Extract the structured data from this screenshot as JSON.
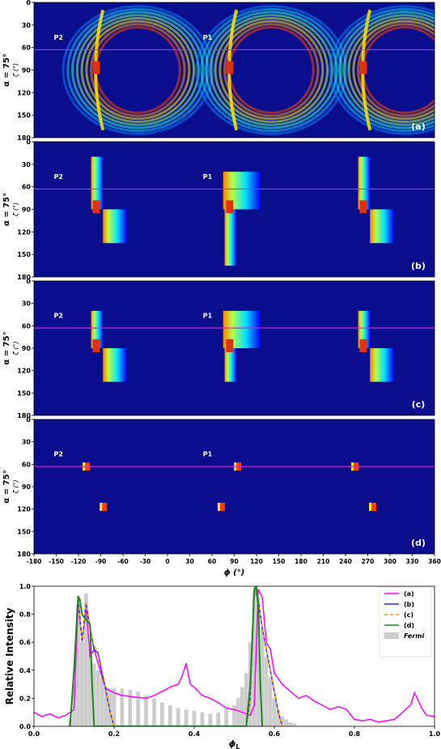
{
  "chart_data": [
    {
      "type": "heatmap",
      "id": "a",
      "panel_tag": "(a)",
      "ylabel_main": "α = 75°",
      "ylabel_sub": "ζ (°)",
      "yticks": [
        0,
        30,
        60,
        90,
        120,
        150,
        180
      ],
      "ylim": [
        0,
        180
      ],
      "xlim": [
        -180,
        360
      ],
      "reference_line_zeta": 63,
      "peak_labels": [
        {
          "text": "P2",
          "phi": -147,
          "zeta": 45
        },
        {
          "text": "P1",
          "phi": 54,
          "zeta": 45
        }
      ],
      "colors": {
        "background": "#0a0e8c",
        "line": "#d820d8"
      }
    },
    {
      "type": "heatmap",
      "id": "b",
      "panel_tag": "(b)",
      "ylabel_main": "α = 75°",
      "ylabel_sub": "ζ (°)",
      "yticks": [
        0,
        30,
        60,
        90,
        120,
        150,
        180
      ],
      "ylim": [
        0,
        180
      ],
      "xlim": [
        -180,
        360
      ],
      "reference_line_zeta": 63,
      "peak_labels": [
        {
          "text": "P2",
          "phi": -147,
          "zeta": 45
        },
        {
          "text": "P1",
          "phi": 54,
          "zeta": 45
        }
      ],
      "colors": {
        "background": "#0a0e8c",
        "line": "#d820d8"
      }
    },
    {
      "type": "heatmap",
      "id": "c",
      "panel_tag": "(c)",
      "ylabel_main": "α = 75°",
      "ylabel_sub": "ζ (°)",
      "yticks": [
        0,
        30,
        60,
        90,
        120,
        150,
        180
      ],
      "ylim": [
        0,
        180
      ],
      "xlim": [
        -180,
        360
      ],
      "reference_line_zeta": 63,
      "peak_labels": [
        {
          "text": "P2",
          "phi": -147,
          "zeta": 45
        },
        {
          "text": "P1",
          "phi": 54,
          "zeta": 45
        }
      ],
      "colors": {
        "background": "#0a0e8c",
        "line": "#d820d8"
      }
    },
    {
      "type": "heatmap",
      "id": "d",
      "panel_tag": "(d)",
      "ylabel_main": "α = 75°",
      "ylabel_sub": "ζ (°)",
      "yticks": [
        0,
        30,
        60,
        90,
        120,
        150,
        180
      ],
      "ylim": [
        0,
        180
      ],
      "xlim": [
        -180,
        360
      ],
      "xticks": [
        -180,
        -150,
        -120,
        -90,
        -60,
        -30,
        0,
        30,
        60,
        90,
        120,
        150,
        180,
        210,
        240,
        270,
        300,
        330,
        360
      ],
      "xlabel": "ϕ (°)",
      "reference_line_zeta": 63,
      "peak_labels": [
        {
          "text": "P2",
          "phi": -147,
          "zeta": 45
        },
        {
          "text": "P1",
          "phi": 54,
          "zeta": 45
        }
      ],
      "colors": {
        "background": "#0a0e8c",
        "line": "#d820d8"
      }
    },
    {
      "type": "line",
      "id": "e",
      "xlabel": "ϕ",
      "xlabel_sub": "L",
      "ylabel": "Relative Intensity",
      "xlim": [
        0,
        1
      ],
      "ylim": [
        0,
        1
      ],
      "xticks": [
        0.0,
        0.2,
        0.4,
        0.6,
        0.8,
        1.0
      ],
      "yticks": [
        0.0,
        0.2,
        0.4,
        0.6,
        0.8,
        1.0
      ],
      "legend_position": "top-right",
      "series": [
        {
          "name": "(a)",
          "color": "#ff00ff",
          "x": [
            0.0,
            0.02,
            0.04,
            0.06,
            0.08,
            0.1,
            0.11,
            0.12,
            0.13,
            0.14,
            0.15,
            0.16,
            0.17,
            0.18,
            0.2,
            0.22,
            0.25,
            0.28,
            0.3,
            0.32,
            0.34,
            0.36,
            0.37,
            0.38,
            0.39,
            0.4,
            0.42,
            0.44,
            0.46,
            0.48,
            0.5,
            0.52,
            0.54,
            0.55,
            0.56,
            0.57,
            0.58,
            0.59,
            0.6,
            0.62,
            0.64,
            0.66,
            0.68,
            0.7,
            0.72,
            0.74,
            0.76,
            0.78,
            0.8,
            0.82,
            0.84,
            0.86,
            0.88,
            0.9,
            0.92,
            0.94,
            0.95,
            0.96,
            0.97,
            0.98,
            1.0
          ],
          "values": [
            0.1,
            0.07,
            0.09,
            0.06,
            0.08,
            0.12,
            0.9,
            0.6,
            0.85,
            0.5,
            0.55,
            0.45,
            0.35,
            0.27,
            0.24,
            0.22,
            0.21,
            0.2,
            0.22,
            0.25,
            0.28,
            0.3,
            0.36,
            0.45,
            0.3,
            0.28,
            0.22,
            0.2,
            0.17,
            0.13,
            0.12,
            0.1,
            0.08,
            0.15,
            0.98,
            0.92,
            0.6,
            0.55,
            0.38,
            0.3,
            0.25,
            0.2,
            0.22,
            0.18,
            0.15,
            0.12,
            0.14,
            0.12,
            0.05,
            0.04,
            0.05,
            0.03,
            0.04,
            0.05,
            0.1,
            0.15,
            0.24,
            0.18,
            0.12,
            0.08,
            0.07
          ]
        },
        {
          "name": "(b)",
          "color": "#1f2aff",
          "x": [
            0.09,
            0.1,
            0.11,
            0.12,
            0.13,
            0.14,
            0.15,
            0.16,
            0.17,
            0.18,
            0.19,
            0.2,
            0.53,
            0.54,
            0.55,
            0.56,
            0.57,
            0.58,
            0.59,
            0.6,
            0.61,
            0.62
          ],
          "values": [
            0.0,
            0.4,
            0.93,
            0.6,
            0.88,
            0.7,
            0.55,
            0.52,
            0.38,
            0.25,
            0.1,
            0.0,
            0.0,
            0.2,
            0.99,
            0.9,
            0.7,
            0.55,
            0.4,
            0.25,
            0.1,
            0.0
          ]
        },
        {
          "name": "(c)",
          "color": "#ff9900",
          "x": [
            0.09,
            0.1,
            0.11,
            0.12,
            0.13,
            0.14,
            0.15,
            0.16,
            0.17,
            0.18,
            0.19,
            0.2,
            0.53,
            0.54,
            0.55,
            0.56,
            0.57,
            0.58,
            0.59,
            0.6,
            0.61,
            0.62
          ],
          "values": [
            0.0,
            0.4,
            0.93,
            0.6,
            0.88,
            0.7,
            0.57,
            0.54,
            0.4,
            0.26,
            0.1,
            0.0,
            0.0,
            0.2,
            0.99,
            0.9,
            0.7,
            0.55,
            0.4,
            0.25,
            0.1,
            0.0
          ]
        },
        {
          "name": "(d)",
          "color": "#1e8a1e",
          "x": [
            0.09,
            0.1,
            0.11,
            0.115,
            0.12,
            0.13,
            0.14,
            0.145,
            0.15,
            0.53,
            0.54,
            0.55,
            0.555,
            0.56,
            0.565,
            0.57
          ],
          "values": [
            0.0,
            0.4,
            0.93,
            0.9,
            0.8,
            0.76,
            0.73,
            0.3,
            0.0,
            0.0,
            0.3,
            0.98,
            1.0,
            0.85,
            0.3,
            0.0
          ]
        },
        {
          "name": "Fermi",
          "color": "#cccccc",
          "kind": "bars",
          "x": [
            0.09,
            0.1,
            0.11,
            0.12,
            0.13,
            0.14,
            0.15,
            0.16,
            0.17,
            0.18,
            0.19,
            0.2,
            0.22,
            0.24,
            0.26,
            0.28,
            0.3,
            0.32,
            0.34,
            0.36,
            0.38,
            0.4,
            0.42,
            0.44,
            0.46,
            0.48,
            0.5,
            0.51,
            0.52,
            0.53,
            0.54,
            0.55,
            0.56,
            0.57,
            0.58,
            0.59,
            0.6,
            0.61,
            0.62,
            0.63,
            0.64,
            0.65
          ],
          "values": [
            0.05,
            0.3,
            0.85,
            0.6,
            0.95,
            0.55,
            0.45,
            0.4,
            0.35,
            0.28,
            0.27,
            0.27,
            0.27,
            0.26,
            0.25,
            0.22,
            0.2,
            0.17,
            0.15,
            0.13,
            0.12,
            0.11,
            0.1,
            0.09,
            0.1,
            0.12,
            0.15,
            0.2,
            0.28,
            0.38,
            0.6,
            0.95,
            0.92,
            0.7,
            0.5,
            0.35,
            0.2,
            0.12,
            0.07,
            0.05,
            0.03,
            0.02
          ]
        }
      ]
    }
  ]
}
